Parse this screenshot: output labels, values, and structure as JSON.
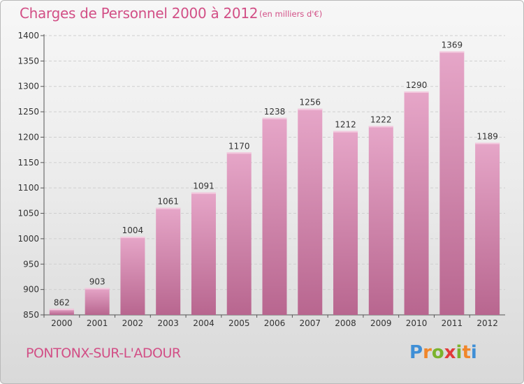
{
  "header": {
    "title": "Charges de Personnel 2000 à 2012",
    "subtitle": "(en milliers d'€)"
  },
  "footer": {
    "commune": "PONTONX-SUR-L'ADOUR",
    "logo": [
      "P",
      "r",
      "o",
      "x",
      "i",
      "t",
      "i"
    ],
    "logo_colors": [
      "#3f8fd6",
      "#f0862a",
      "#7bb32e",
      "#e23a3a",
      "#7bb32e",
      "#f0862a",
      "#3f8fd6"
    ]
  },
  "chart_data": {
    "type": "bar",
    "categories": [
      "2000",
      "2001",
      "2002",
      "2003",
      "2004",
      "2005",
      "2006",
      "2007",
      "2008",
      "2009",
      "2010",
      "2011",
      "2012"
    ],
    "values": [
      862,
      903,
      1004,
      1061,
      1091,
      1170,
      1238,
      1256,
      1212,
      1222,
      1290,
      1369,
      1189
    ],
    "value_labels": [
      "862",
      "903",
      "1004",
      "1061",
      "1091",
      "1170",
      "1238",
      "1256",
      "1212",
      "1222",
      "1290",
      "1369",
      "1189"
    ],
    "yticks": [
      "850",
      "900",
      "950",
      "1000",
      "1050",
      "1100",
      "1150",
      "1200",
      "1250",
      "1300",
      "1350",
      "1400"
    ],
    "ylim": [
      850,
      1400
    ],
    "grid": true,
    "bar_color": "#d982b0"
  }
}
